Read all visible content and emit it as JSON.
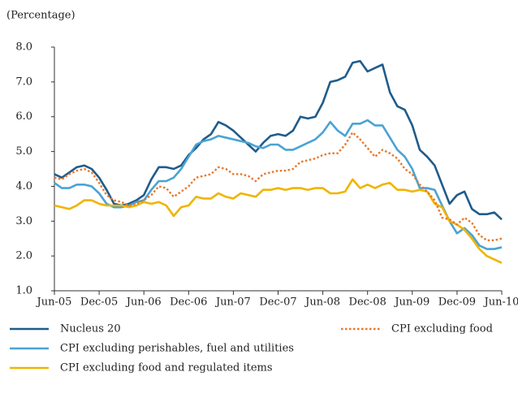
{
  "chart_data": {
    "type": "line",
    "y_label": "(Percentage)",
    "categories": [
      "Jun-05",
      null,
      null,
      null,
      null,
      null,
      "Dec-05",
      null,
      null,
      null,
      null,
      null,
      "Jun-06",
      null,
      null,
      null,
      null,
      null,
      "Dec-06",
      null,
      null,
      null,
      null,
      null,
      "Jun-07",
      null,
      null,
      null,
      null,
      null,
      "Dec-07",
      null,
      null,
      null,
      null,
      null,
      "Jun-08",
      null,
      null,
      null,
      null,
      null,
      "Dec-08",
      null,
      null,
      null,
      null,
      null,
      "Jun-09",
      null,
      null,
      null,
      null,
      null,
      "Dec-09",
      null,
      null,
      null,
      null,
      null,
      "Jun-10"
    ],
    "ylim": [
      1,
      8
    ],
    "yticks": [
      {
        "value": 1,
        "label": "1.0"
      },
      {
        "value": 2,
        "label": "2.0"
      },
      {
        "value": 3,
        "label": "3.0"
      },
      {
        "value": 4,
        "label": "4.0"
      },
      {
        "value": 5,
        "label": "5.0"
      },
      {
        "value": 6,
        "label": "6.0"
      },
      {
        "value": 7,
        "label": "7.0"
      },
      {
        "value": 8,
        "label": "8.0"
      }
    ],
    "series": [
      {
        "name": "Nucleus 20",
        "color": "#1f5c8b",
        "dash": "solid",
        "values": [
          4.35,
          4.25,
          4.4,
          4.55,
          4.6,
          4.5,
          4.25,
          3.9,
          3.5,
          3.45,
          3.5,
          3.6,
          3.75,
          4.2,
          4.55,
          4.55,
          4.5,
          4.6,
          4.9,
          5.1,
          5.35,
          5.5,
          5.85,
          5.75,
          5.6,
          5.4,
          5.2,
          5.0,
          5.25,
          5.45,
          5.5,
          5.45,
          5.6,
          6.0,
          5.95,
          6.0,
          6.4,
          7.0,
          7.05,
          7.15,
          7.55,
          7.6,
          7.3,
          7.4,
          7.5,
          6.7,
          6.3,
          6.2,
          5.75,
          5.05,
          4.85,
          4.6,
          4.05,
          3.5,
          3.75,
          3.85,
          3.35,
          3.2,
          3.2,
          3.25,
          3.05
        ]
      },
      {
        "name": "CPI excluding perishables, fuel and utilities",
        "color": "#4aa3d4",
        "dash": "solid",
        "values": [
          4.1,
          3.95,
          3.95,
          4.05,
          4.05,
          4.0,
          3.8,
          3.5,
          3.4,
          3.4,
          3.45,
          3.55,
          3.6,
          3.9,
          4.15,
          4.15,
          4.25,
          4.5,
          4.85,
          5.2,
          5.3,
          5.35,
          5.45,
          5.4,
          5.35,
          5.3,
          5.25,
          5.15,
          5.1,
          5.2,
          5.2,
          5.05,
          5.05,
          5.15,
          5.25,
          5.35,
          5.55,
          5.85,
          5.6,
          5.45,
          5.8,
          5.8,
          5.9,
          5.75,
          5.75,
          5.4,
          5.05,
          4.85,
          4.5,
          3.95,
          3.95,
          3.9,
          3.45,
          3.0,
          2.65,
          2.8,
          2.6,
          2.3,
          2.2,
          2.2,
          2.25
        ]
      },
      {
        "name": "CPI excluding food and regulated items",
        "color": "#f0b400",
        "dash": "solid",
        "values": [
          3.45,
          3.4,
          3.35,
          3.45,
          3.6,
          3.6,
          3.5,
          3.45,
          3.45,
          3.45,
          3.4,
          3.45,
          3.55,
          3.5,
          3.55,
          3.45,
          3.15,
          3.4,
          3.45,
          3.7,
          3.65,
          3.65,
          3.8,
          3.7,
          3.65,
          3.8,
          3.75,
          3.7,
          3.9,
          3.9,
          3.95,
          3.9,
          3.95,
          3.95,
          3.9,
          3.95,
          3.95,
          3.8,
          3.8,
          3.85,
          4.2,
          3.95,
          4.05,
          3.95,
          4.05,
          4.1,
          3.9,
          3.9,
          3.85,
          3.9,
          3.85,
          3.5,
          3.4,
          3.0,
          2.9,
          2.75,
          2.5,
          2.2,
          2.0,
          1.9,
          1.8
        ]
      },
      {
        "name": "CPI excluding food",
        "color": "#e8782a",
        "dash": "dotted",
        "values": [
          4.25,
          4.2,
          4.35,
          4.45,
          4.5,
          4.4,
          4.1,
          3.75,
          3.6,
          3.55,
          3.45,
          3.5,
          3.6,
          3.75,
          4.0,
          3.95,
          3.7,
          3.85,
          4.0,
          4.25,
          4.3,
          4.35,
          4.55,
          4.5,
          4.35,
          4.35,
          4.3,
          4.15,
          4.35,
          4.4,
          4.45,
          4.45,
          4.5,
          4.7,
          4.75,
          4.8,
          4.9,
          4.95,
          4.95,
          5.2,
          5.55,
          5.35,
          5.1,
          4.85,
          5.05,
          4.95,
          4.8,
          4.5,
          4.35,
          4.05,
          3.85,
          3.6,
          3.1,
          3.05,
          2.9,
          3.1,
          2.95,
          2.6,
          2.45,
          2.45,
          2.5
        ]
      }
    ]
  }
}
